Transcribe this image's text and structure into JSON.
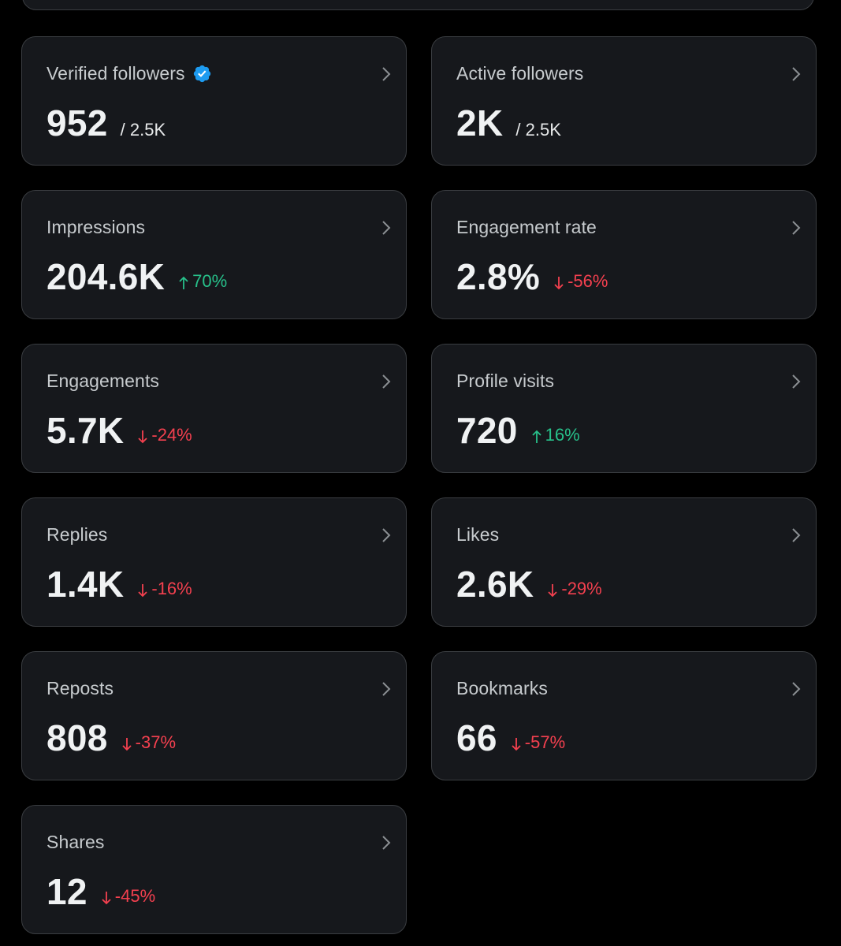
{
  "colors": {
    "background": "#000000",
    "card_background": "#16181c",
    "card_border": "#3a3d41",
    "positive": "#27c08a",
    "negative": "#f4404f",
    "verified_badge": "#1d9bf0"
  },
  "metrics": [
    {
      "label": "Verified followers",
      "value": "952",
      "total": "/ 2.5K",
      "badge_icon": "verified-badge-icon"
    },
    {
      "label": "Active followers",
      "value": "2K",
      "total": "/ 2.5K"
    },
    {
      "label": "Impressions",
      "value": "204.6K",
      "change": "70%",
      "direction": "up"
    },
    {
      "label": "Engagement rate",
      "value": "2.8%",
      "change": "-56%",
      "direction": "down"
    },
    {
      "label": "Engagements",
      "value": "5.7K",
      "change": "-24%",
      "direction": "down"
    },
    {
      "label": "Profile visits",
      "value": "720",
      "change": "16%",
      "direction": "up"
    },
    {
      "label": "Replies",
      "value": "1.4K",
      "change": "-16%",
      "direction": "down"
    },
    {
      "label": "Likes",
      "value": "2.6K",
      "change": "-29%",
      "direction": "down"
    },
    {
      "label": "Reposts",
      "value": "808",
      "change": "-37%",
      "direction": "down"
    },
    {
      "label": "Bookmarks",
      "value": "66",
      "change": "-57%",
      "direction": "down"
    },
    {
      "label": "Shares",
      "value": "12",
      "change": "-45%",
      "direction": "down"
    }
  ]
}
